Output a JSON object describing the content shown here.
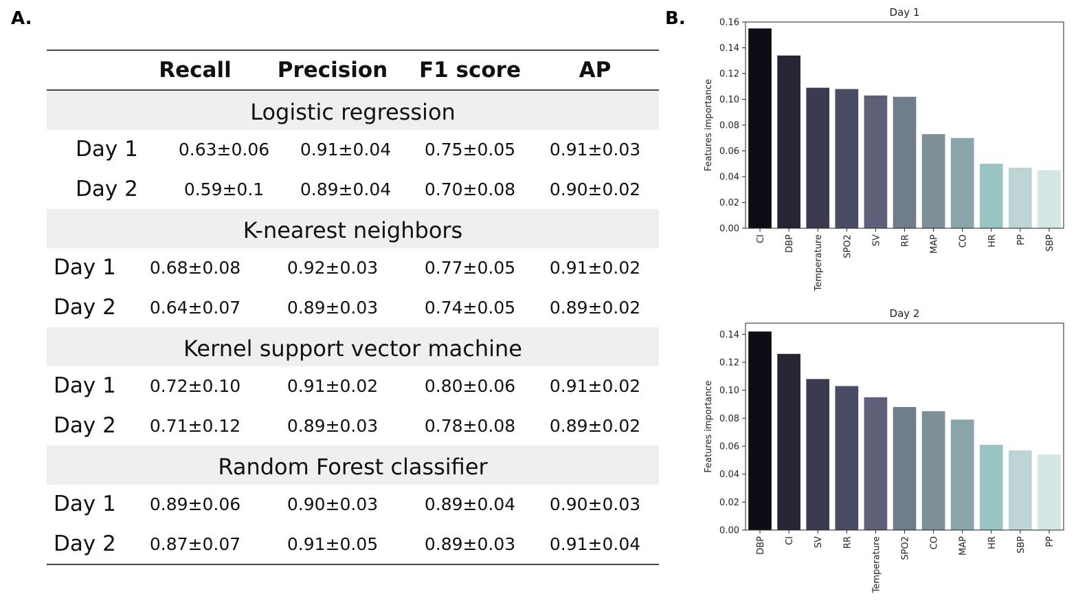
{
  "panels": {
    "a": "A.",
    "b": "B."
  },
  "table": {
    "headers": [
      "Recall",
      "Precision",
      "F1 score",
      "AP"
    ],
    "groups": [
      {
        "name": "Logistic regression",
        "rows": [
          {
            "label": "Day 1",
            "values": [
              "0.63±0.06",
              "0.91±0.04",
              "0.75±0.05",
              "0.91±0.03"
            ]
          },
          {
            "label": "Day 2",
            "values": [
              "0.59±0.1",
              "0.89±0.04",
              "0.70±0.08",
              "0.90±0.02"
            ]
          }
        ]
      },
      {
        "name": "K-nearest neighbors",
        "rows": [
          {
            "label": "Day 1",
            "values": [
              "0.68±0.08",
              "0.92±0.03",
              "0.77±0.05",
              "0.91±0.02"
            ]
          },
          {
            "label": "Day 2",
            "values": [
              "0.64±0.07",
              "0.89±0.03",
              "0.74±0.05",
              "0.89±0.02"
            ]
          }
        ]
      },
      {
        "name": "Kernel support vector machine",
        "rows": [
          {
            "label": "Day 1",
            "values": [
              "0.72±0.10",
              "0.91±0.02",
              "0.80±0.06",
              "0.91±0.02"
            ]
          },
          {
            "label": "Day 2",
            "values": [
              "0.71±0.12",
              "0.89±0.03",
              "0.78±0.08",
              "0.89±0.02"
            ]
          }
        ]
      },
      {
        "name": "Random Forest classifier",
        "rows": [
          {
            "label": "Day 1",
            "values": [
              "0.89±0.06",
              "0.90±0.03",
              "0.89±0.04",
              "0.90±0.03"
            ]
          },
          {
            "label": "Day 2",
            "values": [
              "0.87±0.07",
              "0.91±0.05",
              "0.89±0.03",
              "0.91±0.04"
            ]
          }
        ]
      }
    ]
  },
  "chart_data": [
    {
      "type": "bar",
      "title": "Day 1",
      "xlabel": "",
      "ylabel": "Features importance",
      "ylim": [
        0,
        0.16
      ],
      "yticks": [
        "0.00",
        "0.02",
        "0.04",
        "0.06",
        "0.08",
        "0.10",
        "0.12",
        "0.14",
        "0.16"
      ],
      "categories": [
        "CI",
        "DBP",
        "Temperature",
        "SPO2",
        "SV",
        "RR",
        "MAP",
        "CO",
        "HR",
        "PP",
        "SBP"
      ],
      "values": [
        0.155,
        0.134,
        0.109,
        0.108,
        0.103,
        0.102,
        0.073,
        0.07,
        0.05,
        0.047,
        0.045
      ],
      "colors": [
        "#0d0d15",
        "#252534",
        "#3a3a50",
        "#4a4c65",
        "#5d6078",
        "#6f7d8c",
        "#7d8f97",
        "#8aa5aa",
        "#9ac3c3",
        "#bcd5d4",
        "#d4e6e3"
      ]
    },
    {
      "type": "bar",
      "title": "Day 2",
      "xlabel": "",
      "ylabel": "Features importance",
      "ylim": [
        0,
        0.148
      ],
      "yticks": [
        "0.00",
        "0.02",
        "0.04",
        "0.06",
        "0.08",
        "0.10",
        "0.12",
        "0.14"
      ],
      "categories": [
        "DBP",
        "CI",
        "SV",
        "RR",
        "Temperature",
        "SPO2",
        "CO",
        "MAP",
        "HR",
        "SBP",
        "PP"
      ],
      "values": [
        0.142,
        0.126,
        0.108,
        0.103,
        0.095,
        0.088,
        0.085,
        0.079,
        0.061,
        0.057,
        0.054
      ],
      "colors": [
        "#0d0d15",
        "#252534",
        "#3a3a50",
        "#4a4c65",
        "#5d6078",
        "#6f7d8c",
        "#7d8f97",
        "#8aa5aa",
        "#9ac3c3",
        "#bcd5d4",
        "#d4e6e3"
      ]
    }
  ]
}
